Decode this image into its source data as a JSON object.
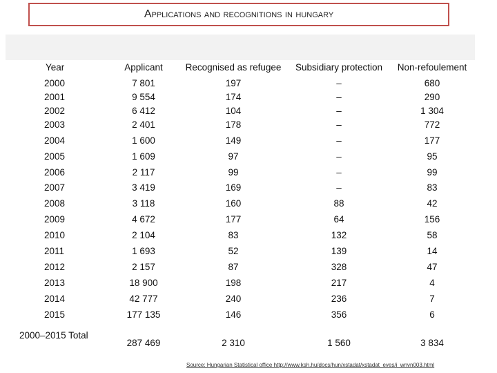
{
  "title": "Applications and recognitions in Hungary",
  "headers": {
    "year": "Year",
    "applicant": "Applicant",
    "refugee": "Recognised as refugee",
    "subsidiary": "Subsidiary protection",
    "nonrefoulement": "Non-refoulement"
  },
  "rows": [
    {
      "year": "2000",
      "applicant": "7 801",
      "refugee": "197",
      "subsidiary": "–",
      "nonrefoulement": "680"
    },
    {
      "year": "2001",
      "applicant": "9 554",
      "refugee": "174",
      "subsidiary": "–",
      "nonrefoulement": "290"
    },
    {
      "year": "2002",
      "applicant": "6 412",
      "refugee": "104",
      "subsidiary": "–",
      "nonrefoulement": "1 304"
    },
    {
      "year": "2003",
      "applicant": "2 401",
      "refugee": "178",
      "subsidiary": "–",
      "nonrefoulement": "772"
    },
    {
      "year": "2004",
      "applicant": "1 600",
      "refugee": "149",
      "subsidiary": "–",
      "nonrefoulement": "177"
    },
    {
      "year": "2005",
      "applicant": "1 609",
      "refugee": "97",
      "subsidiary": "–",
      "nonrefoulement": "95"
    },
    {
      "year": "2006",
      "applicant": "2 117",
      "refugee": "99",
      "subsidiary": "–",
      "nonrefoulement": "99"
    },
    {
      "year": "2007",
      "applicant": "3 419",
      "refugee": "169",
      "subsidiary": "–",
      "nonrefoulement": "83"
    },
    {
      "year": "2008",
      "applicant": "3 118",
      "refugee": "160",
      "subsidiary": "88",
      "nonrefoulement": "42"
    },
    {
      "year": "2009",
      "applicant": "4 672",
      "refugee": "177",
      "subsidiary": "64",
      "nonrefoulement": "156"
    },
    {
      "year": "2010",
      "applicant": "2 104",
      "refugee": "83",
      "subsidiary": "132",
      "nonrefoulement": "58"
    },
    {
      "year": "2011",
      "applicant": "1 693",
      "refugee": "52",
      "subsidiary": "139",
      "nonrefoulement": "14"
    },
    {
      "year": "2012",
      "applicant": "2 157",
      "refugee": "87",
      "subsidiary": "328",
      "nonrefoulement": "47"
    },
    {
      "year": "2013",
      "applicant": "18 900",
      "refugee": "198",
      "subsidiary": "217",
      "nonrefoulement": "4"
    },
    {
      "year": "2014",
      "applicant": "42 777",
      "refugee": "240",
      "subsidiary": "236",
      "nonrefoulement": "7"
    },
    {
      "year": "2015",
      "applicant": "177 135",
      "refugee": "146",
      "subsidiary": "356",
      "nonrefoulement": "6"
    }
  ],
  "total": {
    "year": "2000–2015 Total",
    "applicant": "287 469",
    "refugee": "2 310",
    "subsidiary": "1 560",
    "nonrefoulement": "3 834"
  },
  "source": "Source: Hungarian Statistical office http://www.ksh.hu/docs/hun/xstadat/xstadat_eves/i_wnvn003.html",
  "colors": {
    "title_border": "#c0504d",
    "header_band": "#f2f2f2"
  }
}
